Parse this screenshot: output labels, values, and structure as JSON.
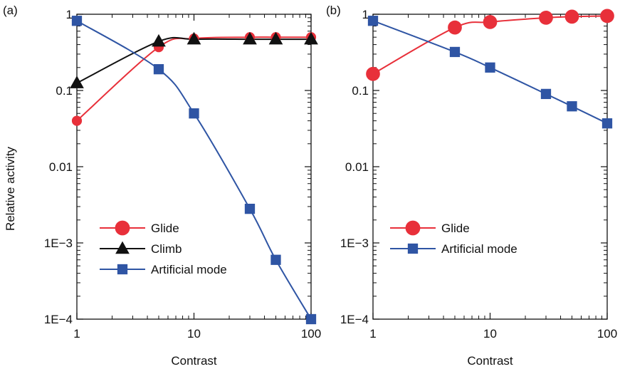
{
  "ylabel": "Relative activity",
  "chart_data": [
    {
      "type": "line",
      "panel_label": "(a)",
      "xlabel": "Contrast",
      "ylabel": "Relative activity",
      "x_scale": "log",
      "y_scale": "log",
      "xlim": [
        1,
        100
      ],
      "ylim": [
        0.0001,
        1
      ],
      "x_ticks": [
        1,
        10,
        100
      ],
      "x_tick_labels": [
        "1",
        "10",
        "100"
      ],
      "y_ticks": [
        0.0001,
        0.001,
        0.01,
        0.1,
        1
      ],
      "y_tick_labels": [
        "1E−4",
        "1E−3",
        "0.01",
        "0.1",
        "1"
      ],
      "grid": false,
      "legend_position": "bottom-left",
      "series": [
        {
          "name": "Glide",
          "color": "#e8303a",
          "marker": "circle",
          "x": [
            1,
            5,
            10,
            30,
            50,
            100
          ],
          "y": [
            0.04,
            0.37,
            0.48,
            0.5,
            0.5,
            0.5
          ]
        },
        {
          "name": "Climb",
          "color": "#111111",
          "marker": "triangle",
          "x": [
            1,
            5,
            10,
            30,
            50,
            100
          ],
          "y": [
            0.125,
            0.44,
            0.47,
            0.47,
            0.47,
            0.47
          ]
        },
        {
          "name": "Artificial mode",
          "color": "#2f55a4",
          "marker": "square",
          "x": [
            1,
            5,
            10,
            30,
            50,
            100
          ],
          "y": [
            0.82,
            0.19,
            0.05,
            0.0028,
            0.0006,
            0.0001
          ]
        }
      ]
    },
    {
      "type": "line",
      "panel_label": "(b)",
      "xlabel": "Contrast",
      "ylabel": "",
      "x_scale": "log",
      "y_scale": "log",
      "xlim": [
        1,
        100
      ],
      "ylim": [
        0.0001,
        1
      ],
      "x_ticks": [
        1,
        10,
        100
      ],
      "x_tick_labels": [
        "1",
        "10",
        "100"
      ],
      "y_ticks": [
        0.0001,
        0.001,
        0.01,
        0.1,
        1
      ],
      "y_tick_labels": [
        "1E−4",
        "1E−3",
        "0.01",
        "0.1",
        "1"
      ],
      "grid": false,
      "legend_position": "bottom-left",
      "series": [
        {
          "name": "Glide",
          "color": "#e8303a",
          "marker": "circle",
          "x": [
            1,
            5,
            10,
            30,
            50,
            100
          ],
          "y": [
            0.165,
            0.67,
            0.79,
            0.9,
            0.93,
            0.95
          ]
        },
        {
          "name": "Artificial mode",
          "color": "#2f55a4",
          "marker": "square",
          "x": [
            1,
            5,
            10,
            30,
            50,
            100
          ],
          "y": [
            0.82,
            0.32,
            0.2,
            0.09,
            0.062,
            0.037
          ]
        }
      ]
    }
  ]
}
